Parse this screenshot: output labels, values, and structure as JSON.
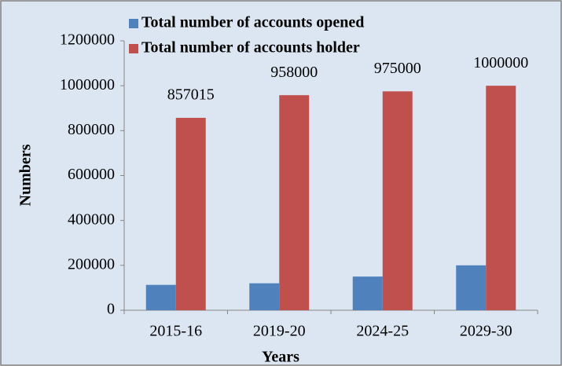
{
  "chart_data": {
    "type": "bar",
    "categories": [
      "2015-16",
      "2019-20",
      "2024-25",
      "2029-30"
    ],
    "series": [
      {
        "name": "Total number of accounts opened",
        "color": "#4f81bd",
        "values": [
          113000,
          120000,
          150000,
          200000
        ]
      },
      {
        "name": "Total number of accounts holder",
        "color": "#c0504d",
        "values": [
          857015,
          958000,
          975000,
          1000000
        ],
        "show_labels": true
      }
    ],
    "x_label": "Years",
    "y_label": "Numbers",
    "ylim": [
      0,
      1200000
    ],
    "yticks": [
      0,
      200000,
      400000,
      600000,
      800000,
      1000000,
      1200000
    ],
    "legend": "top-left",
    "grid": false
  }
}
